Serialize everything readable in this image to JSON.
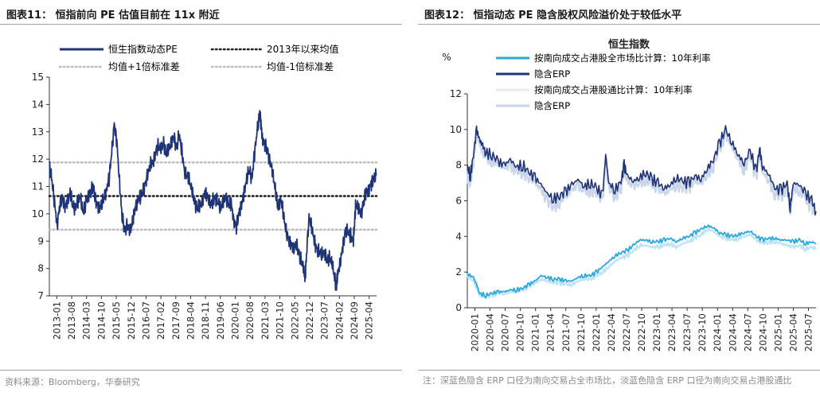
{
  "left": {
    "figure_title": "图表11：  恒指前向 PE 估值目前在 11x 附近",
    "source": "资料来源：Bloomberg，华泰研究"
  },
  "right": {
    "figure_title": "图表12：  恒指动态 PE 隐含股权风险溢价处于较低水平",
    "note": "注：深蓝色隐含 ERP 口径为南向交易占全市场比，淡蓝色隐含 ERP 口径为南向交易占港股通比"
  },
  "colors": {
    "navy": "#1f3377",
    "cyan": "#29a8df",
    "pale_cyan": "#bfe3f3",
    "light_blue": "#c9d5ea",
    "gray_dotted": "#bdbdbd",
    "black_dotted": "#222222",
    "axis": "#333333"
  },
  "chart_data": [
    {
      "type": "line",
      "title": "",
      "xlabel": "",
      "ylabel": "",
      "ylim": [
        7,
        15
      ],
      "yticks": [
        "15",
        "14",
        "13",
        "12",
        "11",
        "10",
        "9",
        "8",
        "7"
      ],
      "x_range": [
        2013.0,
        2025.6
      ],
      "xticks": [
        "2013-01",
        "2013-08",
        "2014-03",
        "2014-10",
        "2015-05",
        "2015-12",
        "2016-07",
        "2017-02",
        "2017-09",
        "2018-04",
        "2018-11",
        "2019-06",
        "2020-01",
        "2020-08",
        "2021-03",
        "2021-10",
        "2022-05",
        "2022-12",
        "2023-07",
        "2024-02",
        "2024-09",
        "2025-04"
      ],
      "legend": {
        "pe": "恒生指数动态PE",
        "mean": "2013年以来均值",
        "plus_sd": "均值+1倍标准差",
        "minus_sd": "均值-1倍标准差"
      },
      "reference_lines": {
        "mean": 10.65,
        "plus_1sd": 11.88,
        "minus_1sd": 9.42
      },
      "series": [
        {
          "name": "恒生指数动态PE",
          "x": [
            2013.0,
            2013.1,
            2013.2,
            2013.3,
            2013.4,
            2013.5,
            2013.6,
            2013.7,
            2013.8,
            2013.9,
            2014.0,
            2014.1,
            2014.2,
            2014.3,
            2014.4,
            2014.5,
            2014.6,
            2014.7,
            2014.8,
            2014.9,
            2015.0,
            2015.1,
            2015.2,
            2015.3,
            2015.4,
            2015.5,
            2015.6,
            2015.7,
            2015.8,
            2015.9,
            2016.0,
            2016.1,
            2016.2,
            2016.3,
            2016.4,
            2016.5,
            2016.6,
            2016.7,
            2016.8,
            2016.9,
            2017.0,
            2017.1,
            2017.2,
            2017.3,
            2017.4,
            2017.5,
            2017.6,
            2017.7,
            2017.8,
            2017.9,
            2018.0,
            2018.1,
            2018.2,
            2018.3,
            2018.4,
            2018.5,
            2018.6,
            2018.7,
            2018.8,
            2018.9,
            2019.0,
            2019.1,
            2019.2,
            2019.3,
            2019.4,
            2019.5,
            2019.6,
            2019.7,
            2019.8,
            2019.9,
            2020.0,
            2020.1,
            2020.2,
            2020.3,
            2020.4,
            2020.5,
            2020.6,
            2020.7,
            2020.8,
            2020.9,
            2021.0,
            2021.1,
            2021.15,
            2021.2,
            2021.3,
            2021.4,
            2021.5,
            2021.6,
            2021.7,
            2021.8,
            2021.9,
            2022.0,
            2022.1,
            2022.2,
            2022.3,
            2022.4,
            2022.5,
            2022.6,
            2022.7,
            2022.8,
            2022.85,
            2022.9,
            2023.0,
            2023.1,
            2023.2,
            2023.3,
            2023.4,
            2023.5,
            2023.6,
            2023.7,
            2023.8,
            2023.9,
            2024.0,
            2024.05,
            2024.1,
            2024.2,
            2024.3,
            2024.4,
            2024.5,
            2024.6,
            2024.7,
            2024.75,
            2024.8,
            2024.9,
            2025.0,
            2025.1,
            2025.2,
            2025.3,
            2025.4,
            2025.5,
            2025.6
          ],
          "values": [
            11.8,
            11.2,
            10.4,
            9.6,
            10.3,
            10.6,
            10.2,
            10.5,
            10.8,
            10.3,
            10.2,
            10.5,
            10.6,
            10.0,
            10.4,
            10.7,
            10.8,
            11.0,
            10.4,
            10.2,
            10.3,
            10.6,
            10.9,
            11.3,
            12.2,
            13.3,
            12.6,
            11.2,
            9.9,
            9.4,
            9.6,
            9.3,
            9.7,
            10.2,
            10.5,
            10.6,
            10.8,
            11.1,
            11.5,
            11.8,
            11.9,
            12.3,
            12.5,
            12.3,
            12.6,
            12.2,
            12.4,
            12.6,
            12.8,
            12.4,
            12.9,
            12.3,
            11.6,
            11.4,
            11.2,
            10.8,
            10.4,
            10.2,
            10.3,
            10.5,
            10.8,
            10.6,
            10.3,
            10.5,
            10.6,
            10.4,
            10.2,
            10.5,
            10.6,
            10.3,
            10.4,
            9.8,
            9.5,
            10.0,
            10.3,
            10.8,
            11.3,
            11.6,
            11.3,
            12.2,
            13.0,
            13.7,
            13.3,
            12.8,
            12.5,
            12.3,
            11.9,
            11.5,
            10.9,
            10.2,
            10.6,
            10.1,
            9.4,
            9.1,
            8.9,
            8.7,
            8.9,
            8.6,
            8.3,
            7.9,
            7.6,
            8.5,
            9.9,
            9.5,
            9.0,
            8.7,
            8.6,
            8.5,
            8.6,
            8.3,
            8.4,
            8.1,
            7.6,
            7.3,
            7.8,
            8.2,
            8.8,
            9.4,
            9.3,
            9.2,
            9.0,
            9.6,
            10.4,
            10.2,
            10.0,
            10.4,
            10.8,
            10.9,
            11.1,
            11.3,
            11.4
          ]
        }
      ]
    },
    {
      "type": "line",
      "title": "恒生指数",
      "xlabel": "",
      "ylabel": "%",
      "ylim": [
        0,
        12
      ],
      "yticks": [
        "12",
        "10",
        "8",
        "6",
        "4",
        "2",
        "0"
      ],
      "x_range": [
        2020.0,
        2025.67
      ],
      "xticks": [
        "2020-01",
        "2020-04",
        "2020-07",
        "2020-10",
        "2021-01",
        "2021-04",
        "2021-07",
        "2021-10",
        "2022-01",
        "2022-04",
        "2022-07",
        "2022-10",
        "2023-01",
        "2023-04",
        "2023-07",
        "2023-10",
        "2024-01",
        "2024-04",
        "2024-07",
        "2024-10",
        "2025-01",
        "2025-04",
        "2025-07"
      ],
      "legend": {
        "rate_total": "按南向成交占港股全市场比计算：10年利率",
        "erp_total": "隐含ERP",
        "rate_connect": "按南向成交占港股通比计算：10年利率",
        "erp_connect": "隐含ERP"
      },
      "series": [
        {
          "name": "隐含ERP（港股全市场口径）",
          "x": [
            2020.0,
            2020.05,
            2020.1,
            2020.15,
            2020.2,
            2020.25,
            2020.3,
            2020.4,
            2020.5,
            2020.6,
            2020.7,
            2020.8,
            2020.9,
            2021.0,
            2021.1,
            2021.2,
            2021.3,
            2021.4,
            2021.5,
            2021.6,
            2021.7,
            2021.8,
            2021.9,
            2022.0,
            2022.1,
            2022.2,
            2022.25,
            2022.3,
            2022.4,
            2022.5,
            2022.55,
            2022.6,
            2022.7,
            2022.8,
            2022.9,
            2023.0,
            2023.1,
            2023.2,
            2023.3,
            2023.4,
            2023.5,
            2023.6,
            2023.7,
            2023.8,
            2023.9,
            2024.0,
            2024.1,
            2024.2,
            2024.3,
            2024.4,
            2024.5,
            2024.6,
            2024.7,
            2024.75,
            2024.8,
            2024.9,
            2025.0,
            2025.1,
            2025.2,
            2025.25,
            2025.3,
            2025.4,
            2025.5,
            2025.6,
            2025.67
          ],
          "values": [
            7.9,
            7.4,
            8.6,
            10.0,
            9.4,
            9.1,
            8.7,
            8.6,
            8.2,
            8.0,
            8.3,
            7.9,
            8.0,
            7.6,
            7.3,
            6.9,
            6.4,
            6.1,
            6.3,
            6.5,
            6.9,
            7.2,
            6.8,
            7.0,
            6.7,
            6.3,
            8.6,
            7.0,
            6.6,
            7.1,
            8.0,
            7.4,
            7.1,
            7.3,
            7.6,
            7.2,
            7.0,
            6.7,
            6.9,
            7.3,
            7.1,
            7.0,
            7.4,
            7.2,
            7.8,
            8.3,
            9.2,
            10.0,
            9.3,
            8.6,
            8.1,
            8.8,
            7.6,
            9.0,
            7.9,
            7.5,
            6.7,
            6.6,
            7.0,
            5.6,
            7.0,
            6.9,
            6.4,
            6.0,
            5.4
          ]
        },
        {
          "name": "隐含ERP（港股通口径）",
          "x": [
            2020.0,
            2020.05,
            2020.1,
            2020.15,
            2020.2,
            2020.25,
            2020.3,
            2020.4,
            2020.5,
            2020.6,
            2020.7,
            2020.8,
            2020.9,
            2021.0,
            2021.1,
            2021.2,
            2021.3,
            2021.4,
            2021.5,
            2021.6,
            2021.7,
            2021.8,
            2021.9,
            2022.0,
            2022.1,
            2022.2,
            2022.25,
            2022.3,
            2022.4,
            2022.5,
            2022.55,
            2022.6,
            2022.7,
            2022.8,
            2022.9,
            2023.0,
            2023.1,
            2023.2,
            2023.3,
            2023.4,
            2023.5,
            2023.6,
            2023.7,
            2023.8,
            2023.9,
            2024.0,
            2024.1,
            2024.2,
            2024.3,
            2024.4,
            2024.5,
            2024.6,
            2024.7,
            2024.75,
            2024.8,
            2024.9,
            2025.0,
            2025.1,
            2025.2,
            2025.25,
            2025.3,
            2025.4,
            2025.5,
            2025.6,
            2025.67
          ],
          "values": [
            7.3,
            7.1,
            8.2,
            9.6,
            9.2,
            8.9,
            8.5,
            8.3,
            8.0,
            7.8,
            8.0,
            7.6,
            7.7,
            7.3,
            7.0,
            6.6,
            6.0,
            5.7,
            6.0,
            6.2,
            6.6,
            6.9,
            6.5,
            6.7,
            6.4,
            6.0,
            8.2,
            6.7,
            6.3,
            6.8,
            7.7,
            7.1,
            6.8,
            7.0,
            7.3,
            6.9,
            6.7,
            6.4,
            6.6,
            7.0,
            6.8,
            6.7,
            7.1,
            6.9,
            7.5,
            8.0,
            8.9,
            9.7,
            9.0,
            8.3,
            7.8,
            8.5,
            7.3,
            8.7,
            7.6,
            7.2,
            6.4,
            6.3,
            6.7,
            5.3,
            6.7,
            6.6,
            6.1,
            5.7,
            5.2
          ]
        },
        {
          "name": "10年利率（港股通口径）",
          "x": [
            2020.0,
            2020.1,
            2020.15,
            2020.2,
            2020.3,
            2020.4,
            2020.5,
            2020.6,
            2020.7,
            2020.8,
            2020.9,
            2021.0,
            2021.1,
            2021.2,
            2021.3,
            2021.4,
            2021.5,
            2021.6,
            2021.7,
            2021.8,
            2021.9,
            2022.0,
            2022.1,
            2022.2,
            2022.3,
            2022.4,
            2022.5,
            2022.6,
            2022.7,
            2022.8,
            2022.9,
            2023.0,
            2023.1,
            2023.2,
            2023.3,
            2023.4,
            2023.5,
            2023.6,
            2023.7,
            2023.8,
            2023.9,
            2024.0,
            2024.1,
            2024.2,
            2024.3,
            2024.4,
            2024.5,
            2024.6,
            2024.7,
            2024.8,
            2024.9,
            2025.0,
            2025.1,
            2025.2,
            2025.3,
            2025.4,
            2025.5,
            2025.6,
            2025.67
          ],
          "values": [
            1.8,
            1.5,
            1.1,
            0.7,
            0.6,
            0.7,
            0.8,
            0.8,
            0.9,
            0.9,
            1.0,
            1.2,
            1.4,
            1.6,
            1.5,
            1.4,
            1.4,
            1.3,
            1.3,
            1.5,
            1.6,
            1.6,
            1.8,
            2.0,
            2.3,
            2.6,
            2.8,
            2.9,
            3.2,
            3.5,
            3.5,
            3.4,
            3.4,
            3.5,
            3.6,
            3.4,
            3.6,
            3.7,
            3.9,
            4.1,
            4.4,
            4.3,
            4.0,
            3.9,
            3.8,
            3.9,
            4.0,
            4.1,
            3.8,
            3.6,
            3.7,
            3.7,
            3.6,
            3.5,
            3.4,
            3.5,
            3.3,
            3.4,
            3.3
          ]
        },
        {
          "name": "10年利率（港股全市场口径）",
          "x": [
            2020.0,
            2020.1,
            2020.15,
            2020.2,
            2020.3,
            2020.4,
            2020.5,
            2020.6,
            2020.7,
            2020.8,
            2020.9,
            2021.0,
            2021.1,
            2021.2,
            2021.3,
            2021.4,
            2021.5,
            2021.6,
            2021.7,
            2021.8,
            2021.9,
            2022.0,
            2022.1,
            2022.2,
            2022.3,
            2022.4,
            2022.5,
            2022.6,
            2022.7,
            2022.8,
            2022.9,
            2023.0,
            2023.1,
            2023.2,
            2023.3,
            2023.4,
            2023.5,
            2023.6,
            2023.7,
            2023.8,
            2023.9,
            2024.0,
            2024.1,
            2024.2,
            2024.3,
            2024.4,
            2024.5,
            2024.6,
            2024.7,
            2024.8,
            2024.9,
            2025.0,
            2025.1,
            2025.2,
            2025.3,
            2025.4,
            2025.5,
            2025.6,
            2025.67
          ],
          "values": [
            1.9,
            1.7,
            1.3,
            0.8,
            0.7,
            0.8,
            0.9,
            0.9,
            1.0,
            1.0,
            1.1,
            1.3,
            1.5,
            1.8,
            1.7,
            1.6,
            1.6,
            1.5,
            1.5,
            1.7,
            1.8,
            1.8,
            2.0,
            2.3,
            2.6,
            2.9,
            3.1,
            3.2,
            3.5,
            3.8,
            3.8,
            3.7,
            3.7,
            3.8,
            3.9,
            3.7,
            3.9,
            4.0,
            4.2,
            4.4,
            4.6,
            4.5,
            4.2,
            4.1,
            4.0,
            4.1,
            4.2,
            4.3,
            4.0,
            3.8,
            3.9,
            3.9,
            3.8,
            3.8,
            3.7,
            3.8,
            3.6,
            3.7,
            3.6
          ]
        }
      ]
    }
  ]
}
